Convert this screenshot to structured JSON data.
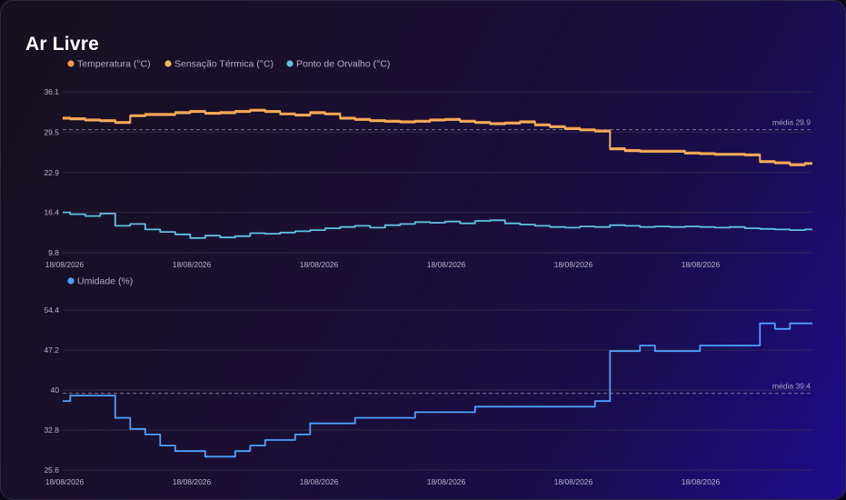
{
  "card": {
    "title": "Ar Livre"
  },
  "chart_data": [
    {
      "type": "line",
      "title": "",
      "xlabel": "",
      "ylabel": "",
      "ylim": [
        9.8,
        36.1
      ],
      "yticks": [
        36.1,
        29.5,
        22.9,
        16.4,
        9.8
      ],
      "x_tick_labels": [
        "18/08/2026",
        "18/08/2026",
        "18/08/2026",
        "18/08/2026",
        "18/08/2026",
        "18/08/2026"
      ],
      "grid": true,
      "legend_position": "top-left",
      "average": {
        "label": "média 29.9",
        "value": 29.9
      },
      "series": [
        {
          "name": "Temperatura (°C)",
          "color": "#f2994a",
          "x": [
            0,
            1,
            2,
            3,
            4,
            5,
            6,
            7,
            8,
            9,
            10,
            11,
            12,
            13,
            14,
            15,
            16,
            17,
            18,
            19,
            20,
            21,
            22,
            23,
            24,
            25,
            26,
            27,
            28,
            29,
            30,
            31,
            32,
            33,
            34,
            35,
            36,
            37,
            38,
            39,
            40,
            41,
            42,
            43,
            44,
            45,
            46,
            47,
            48,
            49,
            50
          ],
          "values": [
            31.9,
            31.8,
            31.6,
            31.5,
            31.2,
            32.3,
            32.5,
            32.5,
            32.8,
            33.0,
            32.7,
            32.8,
            33.0,
            33.2,
            33.0,
            32.6,
            32.4,
            32.8,
            32.6,
            31.9,
            31.7,
            31.5,
            31.4,
            31.3,
            31.4,
            31.6,
            31.7,
            31.4,
            31.2,
            31.0,
            31.1,
            31.3,
            30.8,
            30.5,
            30.2,
            30.0,
            29.8,
            26.9,
            26.6,
            26.5,
            26.5,
            26.5,
            26.2,
            26.1,
            26.0,
            26.0,
            25.9,
            24.8,
            24.6,
            24.3,
            24.5
          ]
        },
        {
          "name": "Sensação Térmica (°C)",
          "color": "#f7b35d",
          "x": [
            0,
            1,
            2,
            3,
            4,
            5,
            6,
            7,
            8,
            9,
            10,
            11,
            12,
            13,
            14,
            15,
            16,
            17,
            18,
            19,
            20,
            21,
            22,
            23,
            24,
            25,
            26,
            27,
            28,
            29,
            30,
            31,
            32,
            33,
            34,
            35,
            36,
            37,
            38,
            39,
            40,
            41,
            42,
            43,
            44,
            45,
            46,
            47,
            48,
            49,
            50
          ],
          "values": [
            31.7,
            31.6,
            31.4,
            31.3,
            31.0,
            32.1,
            32.3,
            32.3,
            32.6,
            32.8,
            32.5,
            32.6,
            32.8,
            33.0,
            32.8,
            32.4,
            32.2,
            32.6,
            32.4,
            31.7,
            31.5,
            31.3,
            31.2,
            31.1,
            31.2,
            31.4,
            31.5,
            31.2,
            31.0,
            30.8,
            30.9,
            31.1,
            30.6,
            30.3,
            30.0,
            29.8,
            29.6,
            26.7,
            26.4,
            26.3,
            26.3,
            26.3,
            26.0,
            25.9,
            25.8,
            25.8,
            25.7,
            24.6,
            24.4,
            24.1,
            24.3
          ]
        },
        {
          "name": "Ponto de Orvalho (°C)",
          "color": "#5ec3e0",
          "x": [
            0,
            1,
            2,
            3,
            4,
            5,
            6,
            7,
            8,
            9,
            10,
            11,
            12,
            13,
            14,
            15,
            16,
            17,
            18,
            19,
            20,
            21,
            22,
            23,
            24,
            25,
            26,
            27,
            28,
            29,
            30,
            31,
            32,
            33,
            34,
            35,
            36,
            37,
            38,
            39,
            40,
            41,
            42,
            43,
            44,
            45,
            46,
            47,
            48,
            49,
            50
          ],
          "values": [
            16.4,
            16.1,
            15.8,
            16.2,
            14.2,
            14.5,
            13.6,
            13.2,
            12.8,
            12.2,
            12.6,
            12.3,
            12.5,
            13.0,
            12.9,
            13.1,
            13.3,
            13.5,
            13.8,
            14.0,
            14.2,
            13.9,
            14.3,
            14.5,
            14.8,
            14.7,
            14.9,
            14.6,
            15.0,
            15.1,
            14.6,
            14.4,
            14.2,
            14.0,
            13.9,
            14.1,
            14.0,
            14.3,
            14.2,
            14.0,
            14.1,
            14.0,
            14.1,
            14.0,
            13.9,
            14.0,
            13.8,
            13.7,
            13.6,
            13.5,
            13.6
          ]
        }
      ]
    },
    {
      "type": "line",
      "title": "",
      "xlabel": "",
      "ylabel": "",
      "ylim": [
        25.6,
        54.4
      ],
      "yticks": [
        54.4,
        47.2,
        40,
        32.8,
        25.6
      ],
      "x_tick_labels": [
        "18/08/2026",
        "18/08/2026",
        "18/08/2026",
        "18/08/2026",
        "18/08/2026",
        "18/08/2026"
      ],
      "grid": true,
      "legend_position": "top-left",
      "average": {
        "label": "média 39.4",
        "value": 39.4
      },
      "series": [
        {
          "name": "Umidade (%)",
          "color": "#4da3ff",
          "x": [
            0,
            1,
            2,
            3,
            4,
            5,
            6,
            7,
            8,
            9,
            10,
            11,
            12,
            13,
            14,
            15,
            16,
            17,
            18,
            19,
            20,
            21,
            22,
            23,
            24,
            25,
            26,
            27,
            28,
            29,
            30,
            31,
            32,
            33,
            34,
            35,
            36,
            37,
            38,
            39,
            40,
            41,
            42,
            43,
            44,
            45,
            46,
            47,
            48,
            49,
            50
          ],
          "values": [
            38,
            39,
            39,
            39,
            35,
            33,
            32,
            30,
            29,
            29,
            28,
            28,
            29,
            30,
            31,
            31,
            32,
            34,
            34,
            34,
            35,
            35,
            35,
            35,
            36,
            36,
            36,
            36,
            37,
            37,
            37,
            37,
            37,
            37,
            37,
            37,
            38,
            47,
            47,
            48,
            47,
            47,
            47,
            48,
            48,
            48,
            48,
            52,
            51,
            52,
            52
          ]
        }
      ]
    }
  ]
}
